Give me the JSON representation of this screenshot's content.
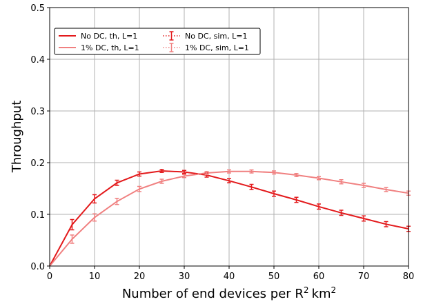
{
  "chart_data": {
    "type": "line",
    "xlabel": "Number of end devices per R",
    "xlabel_sup": "2",
    "xlabel_unit": "km",
    "xlabel_unit_sup": "2",
    "ylabel": "Throughput",
    "xlim": [
      0,
      80
    ],
    "ylim": [
      0,
      0.5
    ],
    "grid": true,
    "legend_position": "upper-left",
    "x_ticks": [
      "0",
      "10",
      "20",
      "30",
      "40",
      "50",
      "60",
      "70",
      "80"
    ],
    "y_ticks": [
      "0.0",
      "0.1",
      "0.2",
      "0.3",
      "0.4",
      "0.5"
    ],
    "x": [
      0,
      5,
      10,
      15,
      20,
      25,
      30,
      35,
      40,
      45,
      50,
      55,
      60,
      65,
      70,
      75,
      80
    ],
    "series": [
      {
        "name": "No DC, th, L=1",
        "style": "solid",
        "color": "#e31a1c",
        "values": [
          0,
          0.08,
          0.13,
          0.161,
          0.178,
          0.184,
          0.182,
          0.176,
          0.165,
          0.153,
          0.14,
          0.128,
          0.115,
          0.103,
          0.092,
          0.081,
          0.072
        ]
      },
      {
        "name": "1% DC, th, L=1",
        "style": "solid",
        "color": "#f08080",
        "values": [
          0,
          0.052,
          0.094,
          0.125,
          0.149,
          0.164,
          0.174,
          0.18,
          0.183,
          0.183,
          0.181,
          0.176,
          0.17,
          0.163,
          0.156,
          0.148,
          0.141
        ]
      },
      {
        "name": "No DC, sim, L=1",
        "style": "dotted-errorbar",
        "color": "#e31a1c",
        "values": [
          0,
          0.08,
          0.13,
          0.161,
          0.178,
          0.184,
          0.182,
          0.176,
          0.165,
          0.153,
          0.14,
          0.128,
          0.115,
          0.103,
          0.092,
          0.081,
          0.072
        ],
        "errors": [
          0,
          0.01,
          0.008,
          0.005,
          0.004,
          0.003,
          0.003,
          0.004,
          0.004,
          0.005,
          0.005,
          0.005,
          0.005,
          0.005,
          0.005,
          0.005,
          0.005
        ]
      },
      {
        "name": "1% DC, sim, L=1",
        "style": "dotted-errorbar",
        "color": "#f08080",
        "values": [
          0,
          0.052,
          0.094,
          0.125,
          0.149,
          0.164,
          0.174,
          0.18,
          0.183,
          0.183,
          0.181,
          0.176,
          0.17,
          0.163,
          0.156,
          0.148,
          0.141
        ],
        "errors": [
          0,
          0.008,
          0.007,
          0.006,
          0.005,
          0.004,
          0.003,
          0.003,
          0.003,
          0.003,
          0.003,
          0.003,
          0.003,
          0.004,
          0.004,
          0.004,
          0.004
        ]
      }
    ]
  }
}
